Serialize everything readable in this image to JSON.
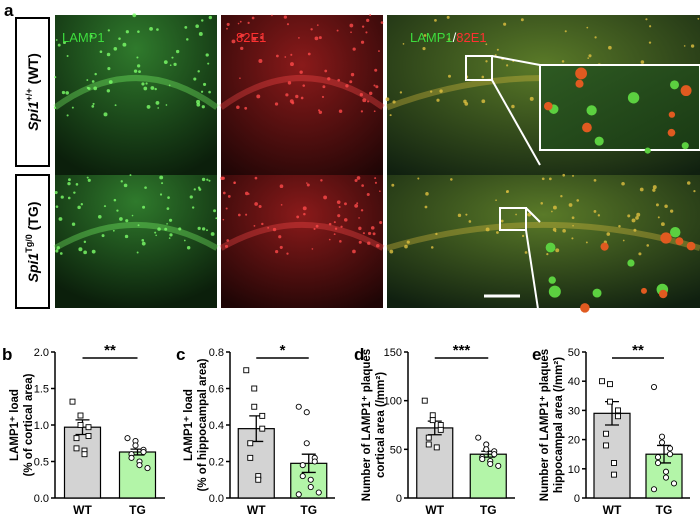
{
  "panel_a": {
    "label": "a",
    "channels": [
      "LAMP1",
      "82E1",
      "LAMP1",
      "/",
      "82E1"
    ],
    "rows": [
      {
        "gene": "Spi1",
        "sup": "+/+",
        "suffix": " (WT)"
      },
      {
        "gene": "Spi1",
        "sup": "Tg/0",
        "suffix": " (TG)"
      }
    ]
  },
  "chart_data": [
    {
      "type": "bar",
      "label": "b",
      "ylabel": [
        "LAMP1⁺ load",
        "(% of cortical area)"
      ],
      "categories": [
        "WT",
        "TG"
      ],
      "values": [
        0.97,
        0.63
      ],
      "errors": [
        0.1,
        0.04
      ],
      "colors": [
        "#d3d3d3",
        "#b3f5a8"
      ],
      "points": [
        [
          1.32,
          1.13,
          1.0,
          0.97,
          0.85,
          0.82,
          0.68,
          0.65,
          0.6
        ],
        [
          0.82,
          0.78,
          0.72,
          0.66,
          0.63,
          0.6,
          0.55,
          0.5,
          0.45,
          0.41
        ]
      ],
      "significance": "**",
      "ylim": [
        0,
        2.0
      ],
      "yticks": [
        {
          "value": 0,
          "label": "0.0"
        },
        {
          "value": 0.5,
          "label": "0.5"
        },
        {
          "value": 1.0,
          "label": "1.0"
        },
        {
          "value": 1.5,
          "label": "1.5"
        },
        {
          "value": 2.0,
          "label": "2.0"
        }
      ]
    },
    {
      "type": "bar",
      "label": "c",
      "ylabel": [
        "LAMP1⁺ load",
        "(% of hippocampal area)"
      ],
      "categories": [
        "WT",
        "TG"
      ],
      "values": [
        0.38,
        0.19
      ],
      "errors": [
        0.07,
        0.05
      ],
      "colors": [
        "#d3d3d3",
        "#b3f5a8"
      ],
      "points": [
        [
          0.7,
          0.6,
          0.5,
          0.45,
          0.38,
          0.3,
          0.22,
          0.12,
          0.1
        ],
        [
          0.5,
          0.47,
          0.3,
          0.22,
          0.2,
          0.18,
          0.12,
          0.1,
          0.06,
          0.03,
          0.02
        ]
      ],
      "significance": "*",
      "ylim": [
        0,
        0.8
      ],
      "yticks": [
        {
          "value": 0,
          "label": "0.0"
        },
        {
          "value": 0.2,
          "label": "0.2"
        },
        {
          "value": 0.4,
          "label": "0.4"
        },
        {
          "value": 0.6,
          "label": "0.6"
        },
        {
          "value": 0.8,
          "label": "0.8"
        }
      ]
    },
    {
      "type": "bar",
      "label": "d",
      "ylabel": [
        "Number of LAMP1⁺ plaques",
        "cortical area (/mm²)"
      ],
      "categories": [
        "WT",
        "TG"
      ],
      "values": [
        72,
        45
      ],
      "errors": [
        7,
        3
      ],
      "colors": [
        "#d3d3d3",
        "#b3f5a8"
      ],
      "points": [
        [
          100,
          85,
          80,
          75,
          70,
          62,
          55,
          52
        ],
        [
          62,
          55,
          50,
          48,
          45,
          42,
          40,
          38,
          35,
          33
        ]
      ],
      "significance": "***",
      "ylim": [
        0,
        150
      ],
      "yticks": [
        0,
        50,
        100,
        150
      ]
    },
    {
      "type": "bar",
      "label": "e",
      "ylabel": [
        "Number of LAMP1⁺ plaques",
        "hippocampal area (/mm²)"
      ],
      "categories": [
        "WT",
        "TG"
      ],
      "values": [
        29,
        15
      ],
      "errors": [
        4,
        3
      ],
      "colors": [
        "#d3d3d3",
        "#b3f5a8"
      ],
      "points": [
        [
          40,
          39,
          33,
          30,
          28,
          22,
          18,
          12,
          8
        ],
        [
          38,
          21,
          19,
          17,
          15,
          14,
          12,
          9,
          7,
          5,
          3
        ]
      ],
      "significance": "**",
      "ylim": [
        0,
        50
      ],
      "yticks": [
        0,
        10,
        20,
        30,
        40,
        50
      ]
    }
  ]
}
